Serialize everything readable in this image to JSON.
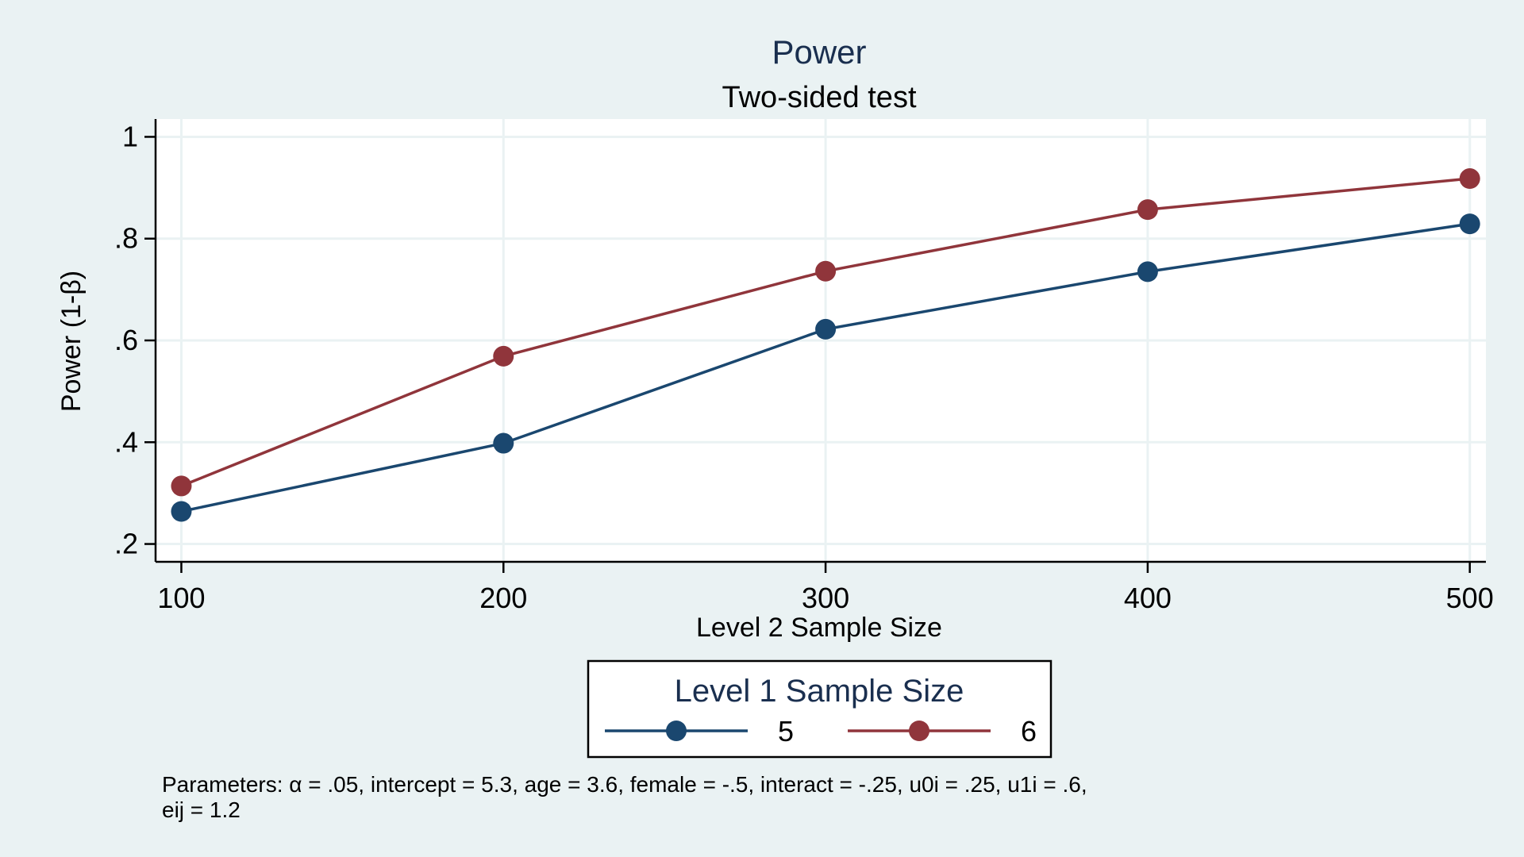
{
  "chart_data": {
    "type": "line",
    "title": "Power",
    "subtitle": "Two-sided test",
    "xlabel": "Level 2 Sample Size",
    "ylabel": "Power (1-β)",
    "x": [
      100,
      200,
      300,
      400,
      500
    ],
    "x_ticks": [
      100,
      200,
      300,
      400,
      500
    ],
    "x_tick_labels": [
      "100",
      "200",
      "300",
      "400",
      "500"
    ],
    "y_ticks": [
      0.2,
      0.4,
      0.6,
      0.8,
      1
    ],
    "y_tick_labels": [
      ".2",
      ".4",
      ".6",
      ".8",
      "1"
    ],
    "xlim": [
      92,
      505
    ],
    "ylim": [
      0.165,
      1.035
    ],
    "grid": true,
    "legend": {
      "title": "Level 1 Sample Size",
      "position": "bottom"
    },
    "series": [
      {
        "name": "5",
        "color": "#1a476f",
        "values": [
          0.264,
          0.398,
          0.622,
          0.735,
          0.829
        ]
      },
      {
        "name": "6",
        "color": "#90353b",
        "values": [
          0.314,
          0.569,
          0.736,
          0.857,
          0.918
        ]
      }
    ],
    "note": [
      "Parameters: α = .05, intercept = 5.3, age = 3.6, female = -.5, interact = -.25, u0i = .25, u1i = .6,",
      "eij = 1.2"
    ]
  },
  "colors": {
    "background": "#eaf2f3",
    "plot_background": "#ffffff",
    "grid": "#eaf2f3",
    "title": "#1a2f4f"
  }
}
